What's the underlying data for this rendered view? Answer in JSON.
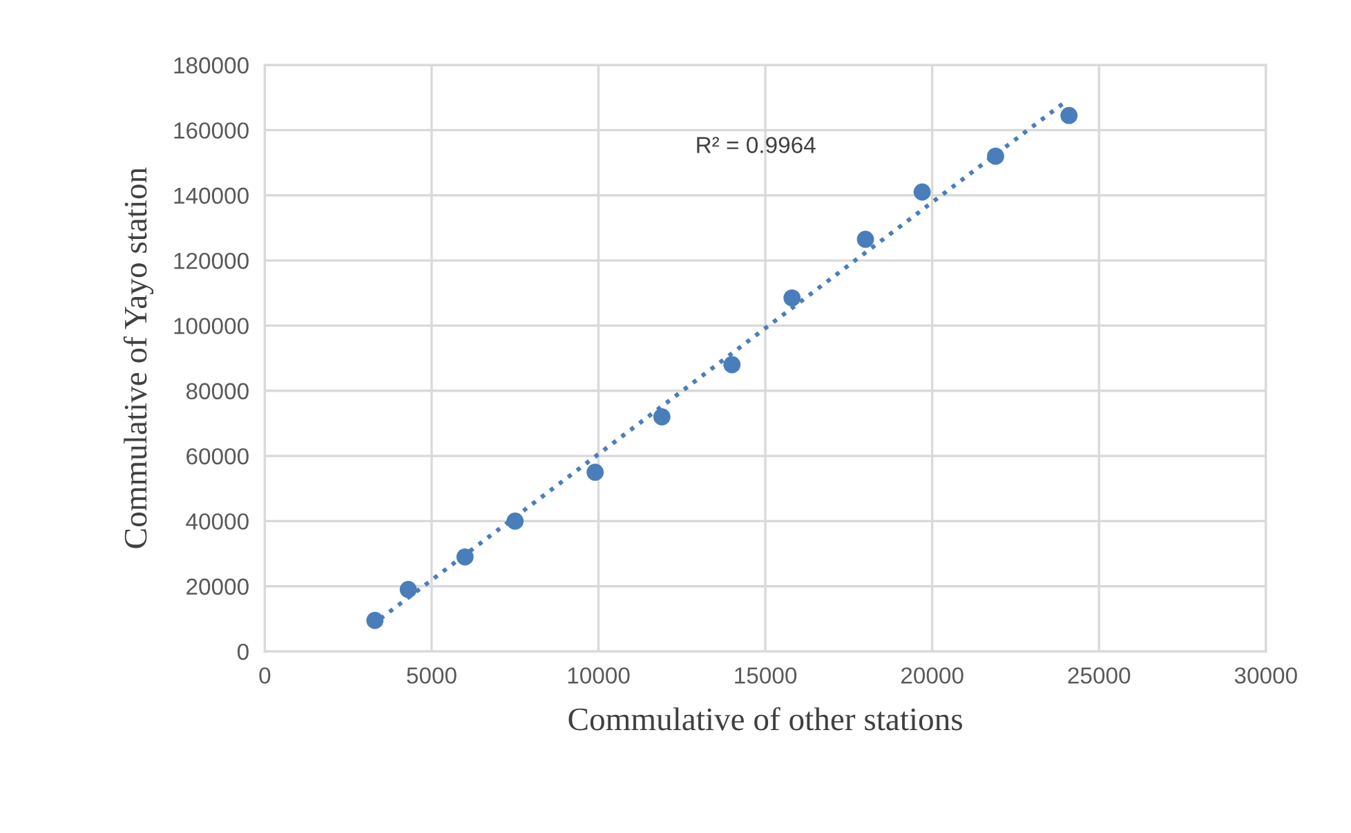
{
  "chart_data": {
    "type": "scatter",
    "xlabel": "Commulative of other stations",
    "ylabel": "Commulative of Yayo station",
    "annotations": [
      "R² = 0.9964"
    ],
    "series": [
      {
        "color": "#4a7ebb",
        "marker": "circle",
        "x": [
          3300,
          4300,
          6000,
          7500,
          9900,
          11900,
          14000,
          15800,
          18000,
          19700,
          21900,
          24100
        ],
        "values": [
          9500,
          19000,
          29000,
          40000,
          55000,
          72000,
          88000,
          108500,
          126500,
          141000,
          152000,
          164500
        ]
      },
      {
        "type": "line",
        "color": "#4a7ebb",
        "line_style": "dotted",
        "marker": "none",
        "x": [
          3200,
          23900
        ],
        "values": [
          8000,
          168000
        ]
      }
    ],
    "xlim": [
      0,
      30000
    ],
    "xticks": [
      0,
      5000,
      10000,
      15000,
      20000,
      25000,
      30000
    ],
    "ylim": [
      0,
      180000
    ],
    "yticks": [
      0,
      20000,
      40000,
      60000,
      80000,
      100000,
      120000,
      140000,
      160000,
      180000
    ],
    "grid": true
  }
}
